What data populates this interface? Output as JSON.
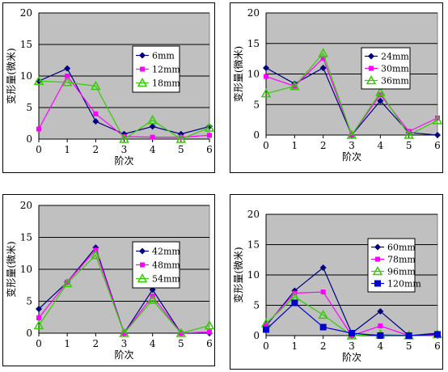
{
  "colors": {
    "plot_bg": "#c0c0c0",
    "grid": "#000000",
    "series": [
      "#000080",
      "#ff00ff",
      "#33cc00",
      "#0000cc"
    ]
  },
  "chart_data": [
    {
      "type": "line",
      "xlabel": "阶次",
      "ylabel": "变形量(微米)",
      "x": [
        0,
        1,
        2,
        3,
        4,
        5,
        6
      ],
      "x_ticks": [
        "0",
        "1",
        "2",
        "3",
        "4",
        "5",
        "6"
      ],
      "y_ticks": [
        "0",
        "5",
        "10",
        "15",
        "20"
      ],
      "ylim": [
        0,
        20
      ],
      "grid": true,
      "legend": "right",
      "series": [
        {
          "name": "6mm",
          "marker": "diamond",
          "values": [
            9.2,
            11.2,
            2.8,
            0.8,
            2.0,
            0.8,
            2.0
          ]
        },
        {
          "name": "12mm",
          "marker": "square",
          "values": [
            1.6,
            10.0,
            4.0,
            0.4,
            0.3,
            0.3,
            0.6
          ]
        },
        {
          "name": "18mm",
          "marker": "triangle",
          "values": [
            9.2,
            9.0,
            8.4,
            0.0,
            3.0,
            0.0,
            1.8
          ]
        }
      ]
    },
    {
      "type": "line",
      "xlabel": "阶次",
      "ylabel": "变形量(微米)",
      "x": [
        0,
        1,
        2,
        3,
        4,
        5,
        6
      ],
      "x_ticks": [
        "0",
        "1",
        "2",
        "3",
        "4",
        "5",
        "6"
      ],
      "y_ticks": [
        "0",
        "5",
        "10",
        "15",
        "20"
      ],
      "ylim": [
        0,
        20
      ],
      "grid": true,
      "legend": "right",
      "series": [
        {
          "name": "24mm",
          "marker": "diamond",
          "values": [
            11.0,
            8.4,
            11.0,
            0.0,
            5.6,
            0.4,
            0.0
          ]
        },
        {
          "name": "30mm",
          "marker": "square",
          "values": [
            9.6,
            8.0,
            12.6,
            0.0,
            6.6,
            0.6,
            2.8
          ]
        },
        {
          "name": "36mm",
          "marker": "triangle",
          "values": [
            6.8,
            8.0,
            13.4,
            0.0,
            7.0,
            0.0,
            2.4
          ]
        }
      ]
    },
    {
      "type": "line",
      "xlabel": "阶次",
      "ylabel": "变形量(微米)",
      "x": [
        0,
        1,
        2,
        3,
        4,
        5,
        6
      ],
      "x_ticks": [
        "0",
        "1",
        "2",
        "3",
        "4",
        "5",
        "6"
      ],
      "y_ticks": [
        "0",
        "5",
        "10",
        "15",
        "20"
      ],
      "ylim": [
        0,
        20
      ],
      "grid": true,
      "legend": "right",
      "series": [
        {
          "name": "42mm",
          "marker": "diamond",
          "values": [
            3.8,
            8.0,
            13.4,
            0.0,
            6.8,
            0.0,
            0.0
          ]
        },
        {
          "name": "48mm",
          "marker": "square",
          "values": [
            2.4,
            8.0,
            13.0,
            0.0,
            5.8,
            0.0,
            0.2
          ]
        },
        {
          "name": "54mm",
          "marker": "triangle",
          "values": [
            1.2,
            7.8,
            12.2,
            0.0,
            5.2,
            0.0,
            1.2
          ]
        }
      ]
    },
    {
      "type": "line",
      "xlabel": "阶次",
      "ylabel": "变形量(微米)",
      "x": [
        0,
        1,
        2,
        3,
        4,
        5,
        6
      ],
      "x_ticks": [
        "0",
        "1",
        "2",
        "3",
        "4",
        "5",
        "6"
      ],
      "y_ticks": [
        "0",
        "5",
        "10",
        "15",
        "20"
      ],
      "ylim": [
        0,
        20
      ],
      "grid": true,
      "legend": "right",
      "series": [
        {
          "name": "60mm",
          "marker": "diamond",
          "values": [
            1.6,
            7.4,
            11.2,
            0.4,
            4.0,
            0.0,
            0.4
          ]
        },
        {
          "name": "78mm",
          "marker": "square",
          "values": [
            1.8,
            7.0,
            7.2,
            0.0,
            1.6,
            0.0,
            0.0
          ]
        },
        {
          "name": "96mm",
          "marker": "triangle",
          "values": [
            2.0,
            6.4,
            3.4,
            0.0,
            0.2,
            0.0,
            0.2
          ]
        },
        {
          "name": "120mm",
          "marker": "square-large",
          "values": [
            1.0,
            5.4,
            1.4,
            0.4,
            0.0,
            0.0,
            0.2
          ]
        }
      ]
    }
  ]
}
